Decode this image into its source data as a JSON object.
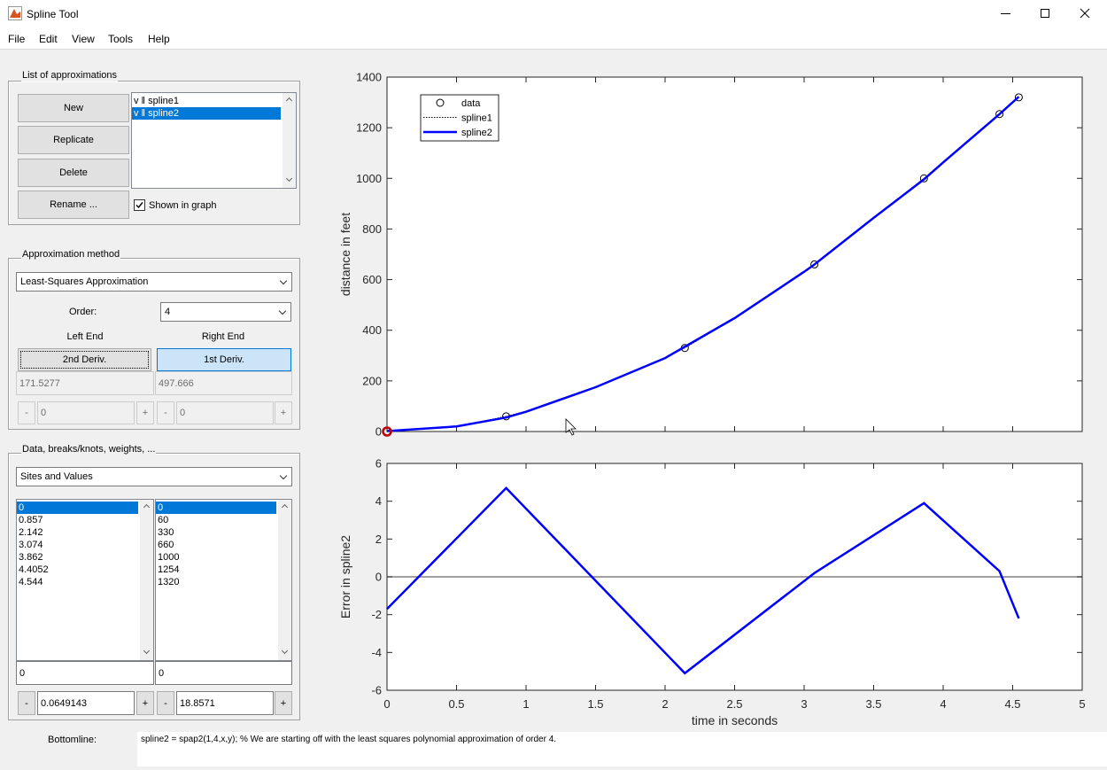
{
  "window": {
    "title": "Spline Tool"
  },
  "menu": [
    "File",
    "Edit",
    "View",
    "Tools",
    "Help"
  ],
  "approximations": {
    "title": "List of approximations",
    "buttons": [
      "New",
      "Replicate",
      "Delete",
      "Rename ..."
    ],
    "list": {
      "items": [
        "v ‖ spline1",
        "v ‖ spline2"
      ],
      "selected": 1
    },
    "checkbox": "Shown in graph"
  },
  "method": {
    "title": "Approximation method",
    "dropdown": "Least-Squares Approximation",
    "order_label": "Order:",
    "order": "4",
    "left_label": "Left End",
    "right_label": "Right End",
    "left_button": "2nd Deriv.",
    "right_button": "1st Deriv.",
    "left_value": "171.5277",
    "right_value": "497.666",
    "left_step": [
      "-",
      "0",
      "+"
    ],
    "right_step": [
      "-",
      "0",
      "+"
    ]
  },
  "data_panel": {
    "title": "Data, breaks/knots, weights, ...",
    "dropdown": "Sites and Values",
    "sites": {
      "items": [
        "0",
        "0.857",
        "2.142",
        "3.074",
        "3.862",
        "4.4052",
        "4.544"
      ],
      "selected": 0
    },
    "values": {
      "items": [
        "0",
        "60",
        "330",
        "660",
        "1000",
        "1254",
        "1320"
      ],
      "selected": 0
    },
    "site_field": "0",
    "value_field": "0",
    "site_step": [
      "-",
      "0.0649143",
      "+"
    ],
    "value_step": [
      "-",
      "18.8571",
      "+"
    ]
  },
  "bottomline": {
    "label": "Bottomline:",
    "text": "spline2 = spap2(1,4,x,y); % We are starting off with the least squares polynomial approximation of order 4."
  },
  "chart_data": [
    {
      "type": "line",
      "ylabel": "distance in feet",
      "xlim": [
        0,
        5
      ],
      "xticks": [
        0,
        0.5,
        1,
        1.5,
        2,
        2.5,
        3,
        3.5,
        4,
        4.5,
        5
      ],
      "show_xtick_labels": false,
      "ylim": [
        0,
        1400
      ],
      "yticks": [
        0,
        200,
        400,
        600,
        800,
        1000,
        1200,
        1400
      ],
      "legend": "upper left",
      "selected_point": 0,
      "selected_color": "#c00000",
      "series": [
        {
          "name": "data",
          "color": "#000000",
          "marker": "o",
          "line_style": "none",
          "x": [
            0,
            0.857,
            2.142,
            3.074,
            3.862,
            4.4052,
            4.544
          ],
          "values": [
            0,
            60,
            330,
            660,
            1000,
            1254,
            1320
          ]
        },
        {
          "name": "spline1",
          "color": "#000000",
          "marker": "none",
          "line_style": "dotted",
          "x": [
            0,
            0.5,
            0.857,
            1,
            1.5,
            2,
            2.142,
            2.5,
            3,
            3.074,
            3.5,
            3.862,
            4,
            4.4052,
            4.544
          ],
          "values": [
            0,
            19,
            60,
            80,
            176,
            292,
            330,
            447,
            632,
            660,
            844,
            1000,
            1065,
            1254,
            1320
          ]
        },
        {
          "name": "spline2",
          "color": "#0000ff",
          "marker": "none",
          "line_style": "solid",
          "x": [
            0,
            0.5,
            0.857,
            1,
            1.5,
            2,
            2.142,
            2.5,
            3,
            3.074,
            3.5,
            3.862,
            4,
            4.4052,
            4.544
          ],
          "values": [
            1.7,
            20,
            55.3,
            78,
            175,
            290,
            335.1,
            448,
            631,
            659.8,
            844,
            996.1,
            1063,
            1253.7,
            1322.2
          ]
        }
      ]
    },
    {
      "type": "line",
      "xlabel": "time in seconds",
      "ylabel": "Error in spline2",
      "xlim": [
        0,
        5
      ],
      "xticks": [
        0,
        0.5,
        1,
        1.5,
        2,
        2.5,
        3,
        3.5,
        4,
        4.5,
        5
      ],
      "show_xtick_labels": true,
      "ylim": [
        -6,
        6
      ],
      "yticks": [
        -6,
        -4,
        -2,
        0,
        2,
        4,
        6
      ],
      "zero_line_color": "#808080",
      "series": [
        {
          "color": "#0000ff",
          "marker": "none",
          "line_style": "solid",
          "x": [
            0,
            0.857,
            2.142,
            3.074,
            3.862,
            4.4052,
            4.544
          ],
          "values": [
            -1.7,
            4.7,
            -5.1,
            0.2,
            3.9,
            0.3,
            -2.2
          ]
        }
      ]
    }
  ]
}
